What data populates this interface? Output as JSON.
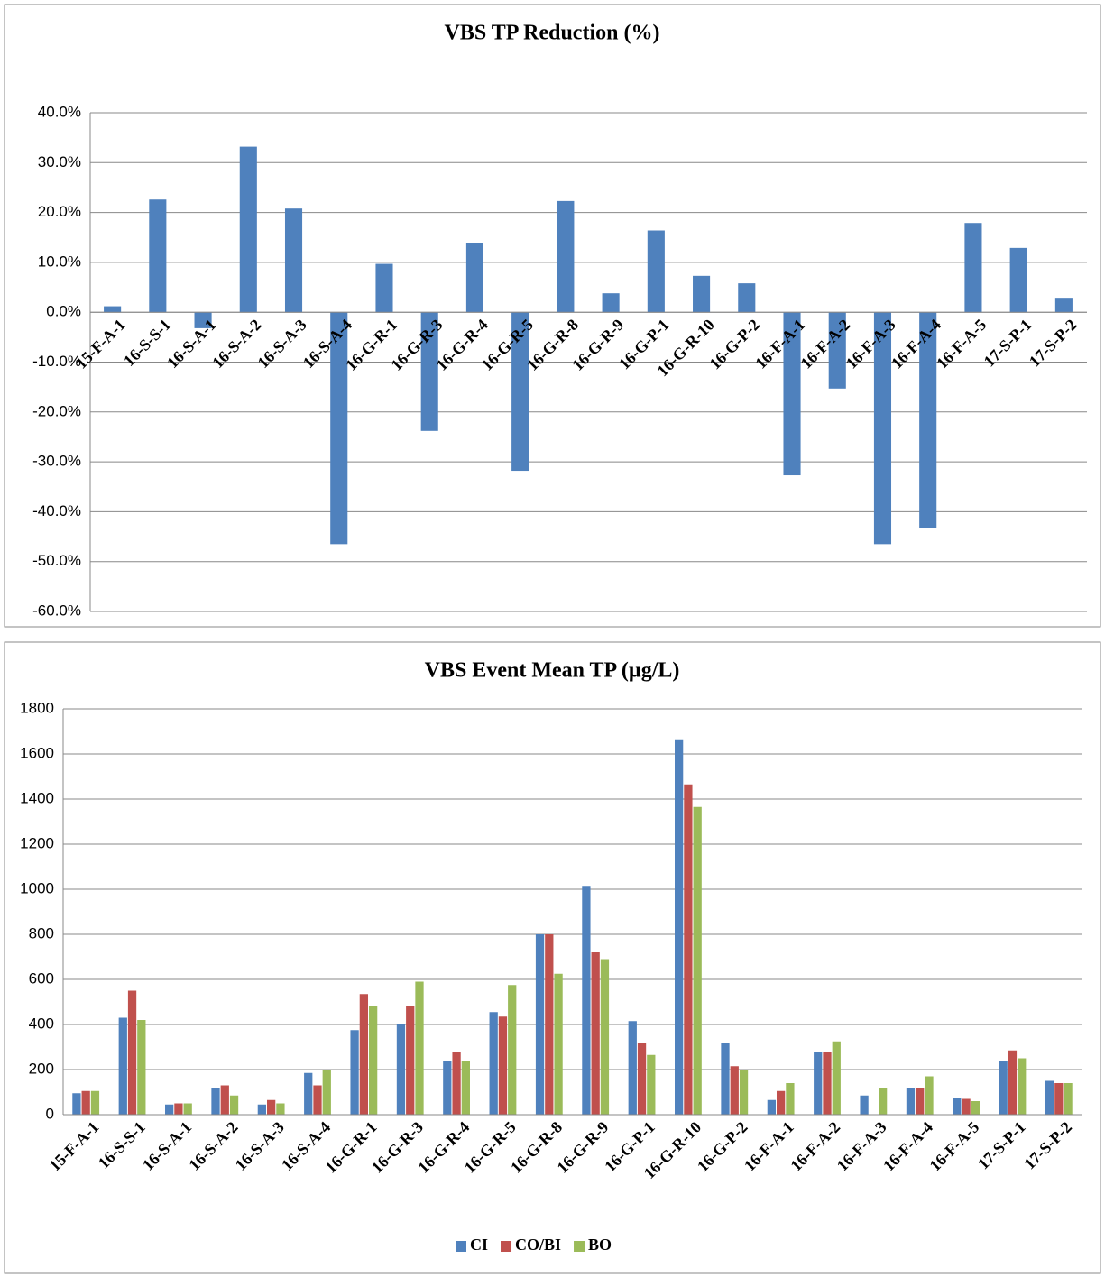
{
  "chart_data": [
    {
      "type": "bar",
      "title": "VBS TP Reduction (%)",
      "categories": [
        "15-F-A-1",
        "16-S-S-1",
        "16-S-A-1",
        "16-S-A-2",
        "16-S-A-3",
        "16-S-A-4",
        "16-G-R-1",
        "16-G-R-3",
        "16-G-R-4",
        "16-G-R-5",
        "16-G-R-8",
        "16-G-R-9",
        "16-G-P-1",
        "16-G-R-10",
        "16-G-P-2",
        "16-F-A-1",
        "16-F-A-2",
        "16-F-A-3",
        "16-F-A-4",
        "16-F-A-5",
        "17-S-P-1",
        "17-S-P-2"
      ],
      "values": [
        1.2,
        22.6,
        -3.2,
        33.2,
        20.8,
        -46.5,
        9.7,
        -23.8,
        13.8,
        -31.8,
        22.3,
        3.8,
        16.4,
        7.3,
        5.8,
        -32.7,
        -15.3,
        -46.5,
        -43.3,
        17.9,
        12.9,
        2.9
      ],
      "color": "#4f81bd",
      "ylim": [
        -60,
        40
      ],
      "yticks": [
        {
          "value": -60,
          "label": "-60.0%"
        },
        {
          "value": -50,
          "label": "-50.0%"
        },
        {
          "value": -40,
          "label": "-40.0%"
        },
        {
          "value": -30,
          "label": "-30.0%"
        },
        {
          "value": -20,
          "label": "-20.0%"
        },
        {
          "value": -10,
          "label": "-10.0%"
        },
        {
          "value": 0,
          "label": "0.0%"
        },
        {
          "value": 10,
          "label": "10.0%"
        },
        {
          "value": 20,
          "label": "20.0%"
        },
        {
          "value": 30,
          "label": "30.0%"
        },
        {
          "value": 40,
          "label": "40.0%"
        }
      ],
      "grid": true
    },
    {
      "type": "bar",
      "title": "VBS Event Mean TP (µg/L)",
      "categories": [
        "15-F-A-1",
        "16-S-S-1",
        "16-S-A-1",
        "16-S-A-2",
        "16-S-A-3",
        "16-S-A-4",
        "16-G-R-1",
        "16-G-R-3",
        "16-G-R-4",
        "16-G-R-5",
        "16-G-R-8",
        "16-G-R-9",
        "16-G-P-1",
        "16-G-R-10",
        "16-G-P-2",
        "16-F-A-1",
        "16-F-A-2",
        "16-F-A-3",
        "16-F-A-4",
        "16-F-A-5",
        "17-S-P-1",
        "17-S-P-2"
      ],
      "series": [
        {
          "name": "CI",
          "color": "#4f81bd",
          "values": [
            95,
            430,
            45,
            120,
            45,
            185,
            375,
            400,
            240,
            455,
            800,
            1015,
            415,
            1665,
            320,
            65,
            280,
            85,
            120,
            75,
            240,
            150
          ]
        },
        {
          "name": "CO/BI",
          "color": "#c0504d",
          "values": [
            105,
            550,
            50,
            130,
            65,
            130,
            535,
            480,
            280,
            435,
            800,
            720,
            320,
            1465,
            215,
            105,
            280,
            null,
            120,
            70,
            285,
            140
          ]
        },
        {
          "name": "BO",
          "color": "#9bbb59",
          "values": [
            105,
            420,
            50,
            85,
            50,
            200,
            480,
            590,
            240,
            575,
            625,
            690,
            265,
            1365,
            200,
            140,
            325,
            120,
            170,
            60,
            250,
            140
          ]
        }
      ],
      "ylim": [
        0,
        1800
      ],
      "yticks": [
        0,
        200,
        400,
        600,
        800,
        1000,
        1200,
        1400,
        1600,
        1800
      ],
      "grid": true,
      "legend": "bottom"
    }
  ]
}
